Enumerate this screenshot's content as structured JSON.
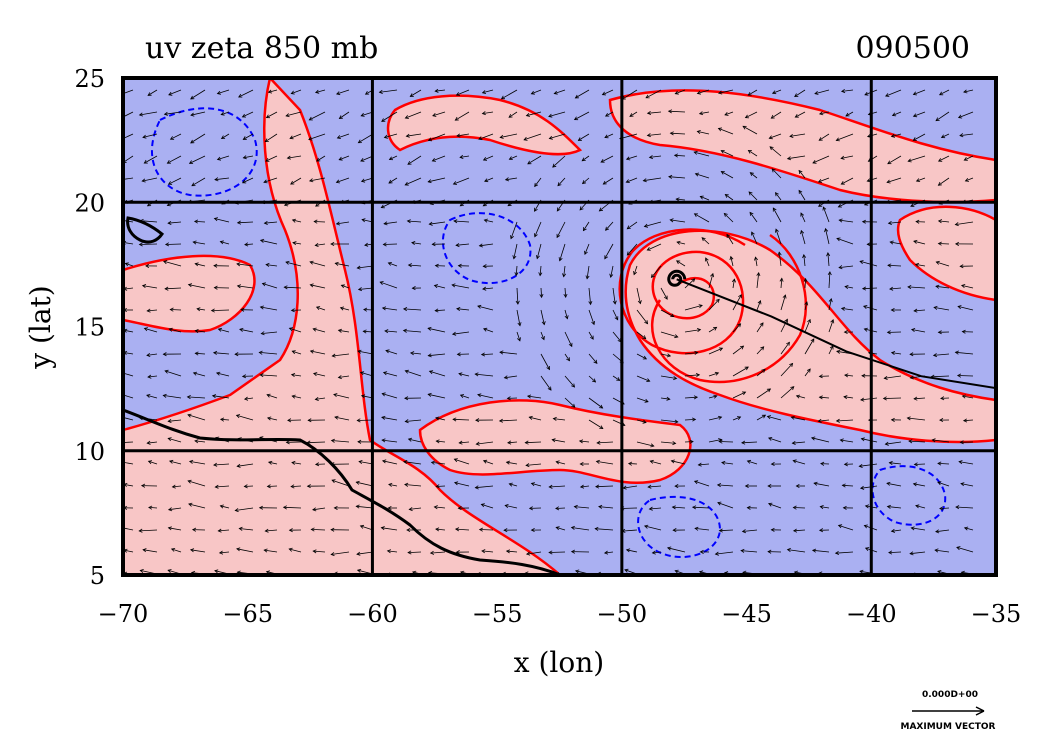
{
  "chart_data": {
    "type": "contour",
    "title": "uv zeta 850 mb",
    "timestamp": "090500",
    "xlabel": "x (lon)",
    "ylabel": "y (lat)",
    "xlim": [
      -70,
      -35
    ],
    "ylim": [
      5,
      25
    ],
    "x_ticks": [
      -70,
      -65,
      -60,
      -55,
      -50,
      -45,
      -40,
      -35
    ],
    "y_ticks": [
      5,
      10,
      15,
      20,
      25
    ],
    "x_tick_labels": [
      "−70",
      "−65",
      "−60",
      "−55",
      "−50",
      "−45",
      "−40",
      "−35"
    ],
    "y_tick_labels": [
      "5",
      "10",
      "15",
      "20",
      "25"
    ],
    "grid_lon": [
      -60,
      -50,
      -40
    ],
    "grid_lat": [
      10,
      20
    ],
    "colors": {
      "negative_fill": "#aab0f2",
      "positive_fill": "#f8c6c6",
      "positive_contour": "#ff0000",
      "negative_contour": "#0000ff",
      "coast": "#000000",
      "grid": "#000000"
    },
    "storm_center": [
      -47.8,
      16.9
    ],
    "track": [
      [
        -47.8,
        16.9
      ],
      [
        -44,
        15.4
      ],
      [
        -41,
        14.0
      ],
      [
        -38,
        13.0
      ],
      [
        -33,
        12.2
      ]
    ],
    "legend": {
      "value_label": "0.000D+00",
      "caption": "MAXIMUM VECTOR"
    }
  }
}
